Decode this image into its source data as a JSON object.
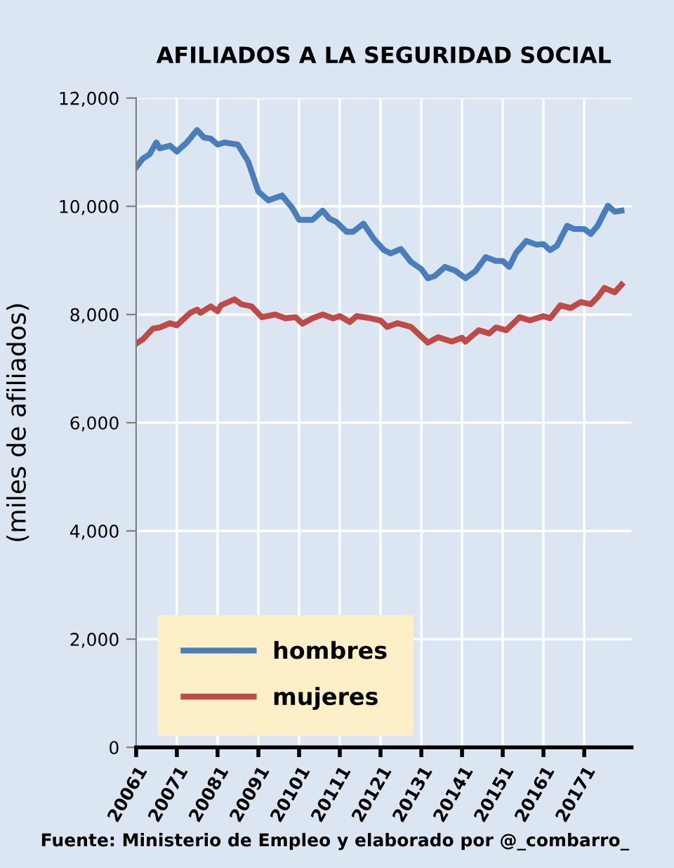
{
  "chart_data": {
    "type": "line",
    "title": "AFILIADOS A LA SEGURIDAD SOCIAL",
    "ylabel": "(miles de afiliados)",
    "annotations": [
      "Fuente: Ministerio de Empleo y elaborado por @_combarro_"
    ],
    "series": [
      {
        "name": "hombres",
        "color": "#4a7ebb",
        "x": [
          "2006-01",
          "2006-03",
          "2006-05",
          "2006-07",
          "2006-08",
          "2006-11",
          "2007-01",
          "2007-04",
          "2007-07",
          "2007-09",
          "2007-11",
          "2008-01",
          "2008-03",
          "2008-07",
          "2008-10",
          "2009-01",
          "2009-04",
          "2009-08",
          "2009-11",
          "2010-01",
          "2010-05",
          "2010-08",
          "2010-10",
          "2010-12",
          "2011-03",
          "2011-05",
          "2011-08",
          "2011-11",
          "2012-02",
          "2012-04",
          "2012-07",
          "2012-10",
          "2013-01",
          "2013-03",
          "2013-05",
          "2013-08",
          "2013-11",
          "2014-02",
          "2014-05",
          "2014-08",
          "2014-11",
          "2015-01",
          "2015-03",
          "2015-05",
          "2015-08",
          "2015-11",
          "2016-01",
          "2016-03",
          "2016-05",
          "2016-08",
          "2016-10",
          "2017-01",
          "2017-03",
          "2017-05",
          "2017-08",
          "2017-10",
          "2017-12"
        ],
        "values": [
          10720,
          10880,
          10960,
          11180,
          11070,
          11120,
          11010,
          11180,
          11410,
          11270,
          11250,
          11140,
          11180,
          11140,
          10830,
          10270,
          10110,
          10200,
          9970,
          9750,
          9750,
          9920,
          9770,
          9710,
          9530,
          9530,
          9680,
          9400,
          9190,
          9130,
          9210,
          8970,
          8840,
          8670,
          8710,
          8880,
          8810,
          8670,
          8800,
          9060,
          8990,
          8990,
          8880,
          9140,
          9360,
          9290,
          9300,
          9190,
          9270,
          9640,
          9580,
          9580,
          9490,
          9640,
          10010,
          9900,
          9920
        ]
      },
      {
        "name": "mujeres",
        "color": "#be4b48",
        "x": [
          "2006-01",
          "2006-03",
          "2006-06",
          "2006-08",
          "2006-11",
          "2007-01",
          "2007-05",
          "2007-07",
          "2007-08",
          "2007-11",
          "2008-01",
          "2008-02",
          "2008-06",
          "2008-08",
          "2008-11",
          "2009-02",
          "2009-06",
          "2009-09",
          "2009-12",
          "2010-02",
          "2010-05",
          "2010-08",
          "2010-11",
          "2011-01",
          "2011-04",
          "2011-06",
          "2011-10",
          "2012-01",
          "2012-03",
          "2012-06",
          "2012-10",
          "2012-12",
          "2013-03",
          "2013-06",
          "2013-10",
          "2014-01",
          "2014-02",
          "2014-06",
          "2014-09",
          "2014-11",
          "2015-02",
          "2015-06",
          "2015-09",
          "2016-01",
          "2016-03",
          "2016-06",
          "2016-09",
          "2016-12",
          "2017-03",
          "2017-05",
          "2017-07",
          "2017-10",
          "2017-12"
        ],
        "values": [
          7460,
          7540,
          7740,
          7760,
          7840,
          7800,
          8030,
          8090,
          8030,
          8150,
          8060,
          8170,
          8280,
          8190,
          8150,
          7950,
          8000,
          7930,
          7950,
          7830,
          7930,
          8000,
          7930,
          7970,
          7860,
          7970,
          7930,
          7890,
          7770,
          7840,
          7770,
          7650,
          7480,
          7580,
          7500,
          7570,
          7500,
          7710,
          7650,
          7760,
          7710,
          7950,
          7890,
          7970,
          7930,
          8170,
          8120,
          8230,
          8190,
          8320,
          8490,
          8410,
          8550
        ]
      }
    ],
    "xlim": [
      "2006-01",
      "2018-03"
    ],
    "xticks": [
      {
        "value": "2006-01",
        "label": "20061"
      },
      {
        "value": "2007-01",
        "label": "20071"
      },
      {
        "value": "2008-01",
        "label": "20081"
      },
      {
        "value": "2009-01",
        "label": "20091"
      },
      {
        "value": "2010-01",
        "label": "20101"
      },
      {
        "value": "2011-01",
        "label": "20111"
      },
      {
        "value": "2012-01",
        "label": "20121"
      },
      {
        "value": "2013-01",
        "label": "20131"
      },
      {
        "value": "2014-01",
        "label": "20141"
      },
      {
        "value": "2015-01",
        "label": "20151"
      },
      {
        "value": "2016-01",
        "label": "20161"
      },
      {
        "value": "2017-01",
        "label": "20171"
      }
    ],
    "ylim": [
      0,
      12000
    ],
    "yticks": [
      0,
      {
        "value": 2000,
        "label": "2,000"
      },
      {
        "value": 4000,
        "label": "4,000"
      },
      {
        "value": 6000,
        "label": "6,000"
      },
      {
        "value": 8000,
        "label": "8,000"
      },
      {
        "value": 10000,
        "label": "10,000"
      },
      {
        "value": 12000,
        "label": "12,000"
      }
    ],
    "grid": true,
    "legend": "bottom left",
    "marker": "none",
    "line_style": "solid"
  }
}
